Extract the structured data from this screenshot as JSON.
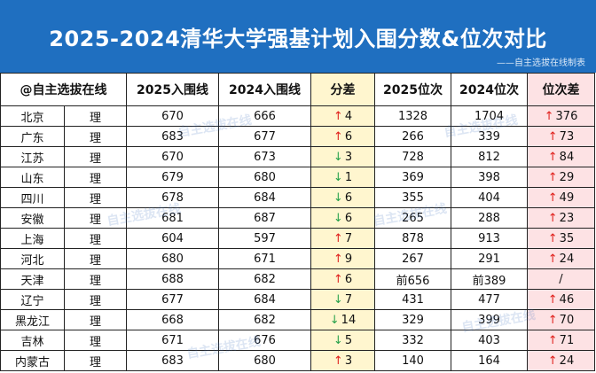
{
  "header": {
    "title": "2025-2024清华大学强基计划入围分数&位次对比",
    "credit": "——自主选拔在线制表"
  },
  "table": {
    "columns": [
      "@自主选拔在线",
      "",
      "2025入围线",
      "2024入围线",
      "分差",
      "2025位次",
      "2024位次",
      "位次差"
    ],
    "rows": [
      {
        "province": "北京",
        "subject": "理",
        "score2025": "670",
        "score2024": "666",
        "diff_dir": "up",
        "diff": "4",
        "rank2025": "1328",
        "rank2024": "1704",
        "rdiff_dir": "up",
        "rdiff": "376"
      },
      {
        "province": "广东",
        "subject": "理",
        "score2025": "683",
        "score2024": "677",
        "diff_dir": "up",
        "diff": "6",
        "rank2025": "266",
        "rank2024": "339",
        "rdiff_dir": "up",
        "rdiff": "73"
      },
      {
        "province": "江苏",
        "subject": "理",
        "score2025": "670",
        "score2024": "673",
        "diff_dir": "down",
        "diff": "3",
        "rank2025": "728",
        "rank2024": "812",
        "rdiff_dir": "up",
        "rdiff": "84"
      },
      {
        "province": "山东",
        "subject": "理",
        "score2025": "679",
        "score2024": "680",
        "diff_dir": "down",
        "diff": "1",
        "rank2025": "369",
        "rank2024": "398",
        "rdiff_dir": "up",
        "rdiff": "29"
      },
      {
        "province": "四川",
        "subject": "理",
        "score2025": "678",
        "score2024": "684",
        "diff_dir": "down",
        "diff": "6",
        "rank2025": "355",
        "rank2024": "404",
        "rdiff_dir": "up",
        "rdiff": "49"
      },
      {
        "province": "安徽",
        "subject": "理",
        "score2025": "681",
        "score2024": "687",
        "diff_dir": "down",
        "diff": "6",
        "rank2025": "265",
        "rank2024": "288",
        "rdiff_dir": "up",
        "rdiff": "23"
      },
      {
        "province": "上海",
        "subject": "理",
        "score2025": "604",
        "score2024": "597",
        "diff_dir": "up",
        "diff": "7",
        "rank2025": "878",
        "rank2024": "913",
        "rdiff_dir": "up",
        "rdiff": "35"
      },
      {
        "province": "河北",
        "subject": "理",
        "score2025": "680",
        "score2024": "671",
        "diff_dir": "up",
        "diff": "9",
        "rank2025": "267",
        "rank2024": "291",
        "rdiff_dir": "up",
        "rdiff": "24"
      },
      {
        "province": "天津",
        "subject": "理",
        "score2025": "688",
        "score2024": "682",
        "diff_dir": "up",
        "diff": "6",
        "rank2025": "前656",
        "rank2024": "前389",
        "rdiff_dir": "",
        "rdiff": "/"
      },
      {
        "province": "辽宁",
        "subject": "理",
        "score2025": "677",
        "score2024": "684",
        "diff_dir": "down",
        "diff": "7",
        "rank2025": "431",
        "rank2024": "477",
        "rdiff_dir": "up",
        "rdiff": "46"
      },
      {
        "province": "黑龙江",
        "subject": "理",
        "score2025": "668",
        "score2024": "682",
        "diff_dir": "down",
        "diff": "14",
        "rank2025": "329",
        "rank2024": "399",
        "rdiff_dir": "up",
        "rdiff": "70"
      },
      {
        "province": "吉林",
        "subject": "理",
        "score2025": "671",
        "score2024": "676",
        "diff_dir": "down",
        "diff": "5",
        "rank2025": "332",
        "rank2024": "403",
        "rdiff_dir": "up",
        "rdiff": "71"
      },
      {
        "province": "内蒙古",
        "subject": "理",
        "score2025": "683",
        "score2024": "680",
        "diff_dir": "up",
        "diff": "3",
        "rank2025": "140",
        "rank2024": "164",
        "rdiff_dir": "up",
        "rdiff": "24"
      }
    ]
  },
  "icons": {
    "up": "up-arrow-icon",
    "down": "down-arrow-icon"
  },
  "colors": {
    "banner": "#1f6fc0",
    "diff_column": "#fff6cf",
    "rank_diff_column": "#fde2e4",
    "up_arrow": "#e0201c",
    "down_arrow": "#27a14a"
  },
  "watermark": "自主选拔在线"
}
